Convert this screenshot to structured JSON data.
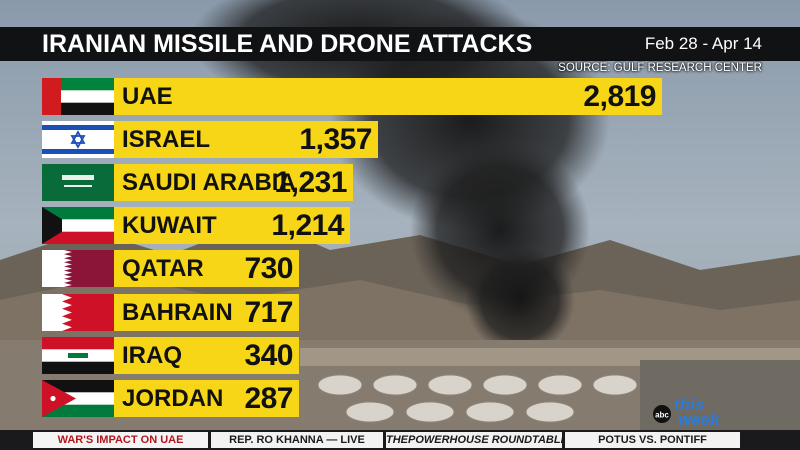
{
  "header": {
    "title": "IRANIAN MISSILE AND DRONE ATTACKS",
    "date_range": "Feb 28 - Apr 14",
    "source": "SOURCE: GULF RESEARCH CENTER"
  },
  "chart_data": {
    "type": "bar",
    "orientation": "horizontal",
    "title": "IRANIAN MISSILE AND DRONE ATTACKS",
    "categories": [
      "UAE",
      "ISRAEL",
      "SAUDI ARABIA",
      "KUWAIT",
      "QATAR",
      "BAHRAIN",
      "IRAQ",
      "JORDAN"
    ],
    "values": [
      2819,
      1357,
      1231,
      1214,
      730,
      717,
      340,
      287
    ],
    "value_labels": [
      "2,819",
      "1,357",
      "1,231",
      "1,214",
      "730",
      "717",
      "340",
      "287"
    ],
    "flags": [
      "uae-flag",
      "israel-flag",
      "saudi-arabia-flag",
      "kuwait-flag",
      "qatar-flag",
      "bahrain-flag",
      "iraq-flag",
      "jordan-flag"
    ],
    "bar_color": "#f7d617",
    "grid": false
  },
  "logo": {
    "network": "abc",
    "show": "this week"
  },
  "ticker": {
    "items": [
      {
        "label": "WAR'S IMPACT ON UAE"
      },
      {
        "label": "REP. RO KHANNA — LIVE"
      },
      {
        "prefix": "THE",
        "label": "POWERHOUSE ROUNDTABLE"
      },
      {
        "label": "POTUS VS. PONTIFF"
      }
    ]
  },
  "colors": {
    "bar": "#f7d617",
    "title_bar": "#111214",
    "ticker_accent": "#b3151c"
  }
}
